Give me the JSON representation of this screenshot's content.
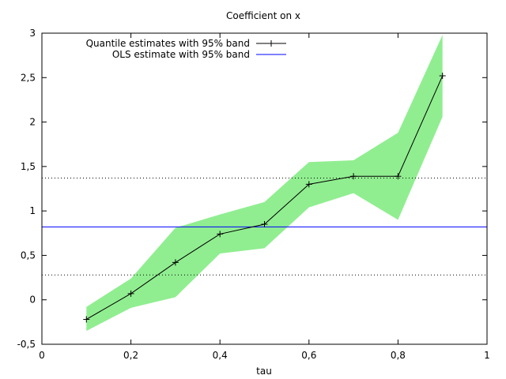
{
  "chart_data": {
    "type": "line",
    "title": "Coefficient on x",
    "xlabel": "tau",
    "ylabel": "",
    "xlim": [
      0,
      1
    ],
    "ylim": [
      -0.5,
      3
    ],
    "xticks": [
      0,
      0.2,
      0.4,
      0.6,
      0.8,
      1
    ],
    "xtick_labels": [
      "0",
      "0,2",
      "0,4",
      "0,6",
      "0,8",
      "1"
    ],
    "yticks": [
      -0.5,
      0,
      0.5,
      1,
      1.5,
      2,
      2.5,
      3
    ],
    "ytick_labels": [
      "-0,5",
      "0",
      "0,5",
      "1",
      "1,5",
      "2",
      "2,5",
      "3"
    ],
    "legend_position": "top-left",
    "grid": false,
    "series": [
      {
        "name": "Quantile estimates with 95% band",
        "color": "#000000",
        "band_color": "#90ee90",
        "x": [
          0.1,
          0.2,
          0.3,
          0.4,
          0.5,
          0.6,
          0.7,
          0.8,
          0.9
        ],
        "values": [
          -0.22,
          0.07,
          0.42,
          0.74,
          0.85,
          1.3,
          1.39,
          1.39,
          2.52
        ],
        "lower": [
          -0.35,
          -0.09,
          0.03,
          0.52,
          0.58,
          1.04,
          1.2,
          0.9,
          2.06
        ],
        "upper": [
          -0.08,
          0.24,
          0.81,
          0.96,
          1.1,
          1.55,
          1.57,
          1.88,
          2.98
        ]
      },
      {
        "name": "OLS estimate with 95% band",
        "color": "#0000ff",
        "estimate": 0.82,
        "lower": 0.28,
        "upper": 1.37
      }
    ]
  }
}
